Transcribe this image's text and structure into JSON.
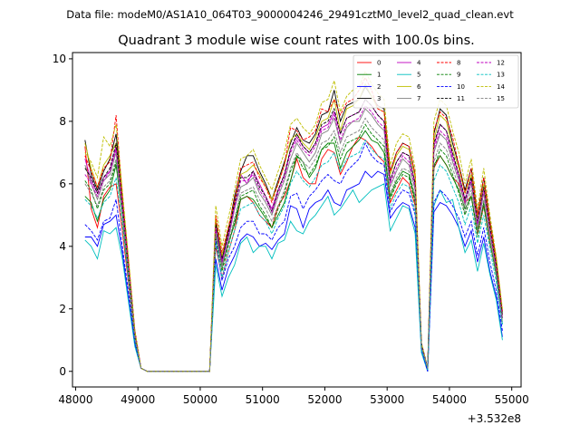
{
  "header": {
    "data_file": "Data file: modeM0/AS1A10_064T03_9000004246_29491cztM0_level2_quad_clean.evt"
  },
  "chart_data": {
    "type": "line",
    "title": "Quadrant 3 module wise count rates with 100.0s bins.",
    "xlabel": "",
    "ylabel": "",
    "offset_text": "+3.532e8",
    "xlim": [
      47950,
      55150
    ],
    "ylim": [
      -0.5,
      10.2
    ],
    "xticks": [
      48000,
      49000,
      50000,
      51000,
      52000,
      53000,
      54000,
      55000
    ],
    "xtick_labels": [
      "48000",
      "49000",
      "50000",
      "51000",
      "52000",
      "53000",
      "54000",
      "55000"
    ],
    "yticks": [
      0,
      2,
      4,
      6,
      8,
      10
    ],
    "ytick_labels": [
      "0",
      "2",
      "4",
      "6",
      "8",
      "10"
    ],
    "grid": false,
    "legend_position": "top-right",
    "x": [
      48150,
      48250,
      48350,
      48450,
      48550,
      48650,
      48750,
      48850,
      48950,
      49050,
      49150,
      50150,
      50250,
      50350,
      50450,
      50550,
      50650,
      50750,
      50850,
      50950,
      51050,
      51150,
      51250,
      51350,
      51450,
      51550,
      51650,
      51750,
      51850,
      51950,
      52050,
      52150,
      52250,
      52350,
      52450,
      52550,
      52650,
      52750,
      52850,
      52950,
      53050,
      53150,
      53250,
      53350,
      53450,
      53550,
      53650,
      53750,
      53850,
      53950,
      54050,
      54150,
      54250,
      54350,
      54450,
      54550,
      54650,
      54750,
      54850
    ],
    "series": [
      {
        "name": "0",
        "color": "#ff0000",
        "dash": "solid",
        "values": [
          7.2,
          5.2,
          4.6,
          5.6,
          5.9,
          6.0,
          4.5,
          2.8,
          1.0,
          0.1,
          0.0,
          0.0,
          4.0,
          3.0,
          3.8,
          4.5,
          5.5,
          5.6,
          5.4,
          5.0,
          4.8,
          4.6,
          5.3,
          5.6,
          6.1,
          6.8,
          6.2,
          6.0,
          6.0,
          6.8,
          7.1,
          7.0,
          6.3,
          6.7,
          7.2,
          7.5,
          7.4,
          7.2,
          6.9,
          6.7,
          5.4,
          5.8,
          6.2,
          6.0,
          5.3,
          0.8,
          0.1,
          6.5,
          6.9,
          6.6,
          6.2,
          6.0,
          5.4,
          5.6,
          4.4,
          5.3,
          4.1,
          3.2,
          1.7
        ]
      },
      {
        "name": "1",
        "color": "#008000",
        "dash": "solid",
        "values": [
          5.6,
          5.4,
          4.8,
          5.5,
          5.8,
          6.6,
          5.0,
          3.0,
          1.1,
          0.1,
          0.0,
          0.0,
          4.4,
          3.3,
          4.1,
          4.7,
          5.5,
          5.6,
          5.5,
          5.2,
          4.9,
          4.6,
          5.0,
          5.4,
          6.1,
          6.9,
          6.7,
          6.2,
          6.5,
          7.1,
          7.3,
          7.3,
          6.5,
          7.0,
          7.2,
          7.4,
          7.7,
          7.4,
          7.3,
          7.0,
          5.6,
          6.1,
          6.4,
          6.3,
          5.5,
          0.8,
          0.1,
          6.6,
          6.9,
          6.6,
          6.2,
          5.8,
          5.2,
          5.6,
          4.5,
          5.4,
          4.2,
          3.1,
          1.5
        ]
      },
      {
        "name": "2",
        "color": "#0000ff",
        "dash": "solid",
        "values": [
          4.3,
          4.3,
          4.0,
          4.7,
          4.8,
          5.0,
          3.8,
          2.3,
          0.9,
          0.1,
          0.0,
          0.0,
          3.6,
          2.6,
          3.3,
          3.7,
          4.2,
          4.4,
          4.3,
          4.0,
          4.1,
          3.9,
          4.2,
          4.4,
          5.3,
          5.2,
          4.6,
          5.2,
          5.4,
          5.5,
          5.8,
          5.4,
          5.3,
          5.8,
          5.9,
          6.0,
          6.4,
          6.2,
          6.4,
          6.3,
          4.9,
          5.2,
          5.4,
          5.3,
          4.6,
          0.7,
          0.0,
          5.1,
          5.4,
          5.3,
          5.0,
          4.6,
          4.0,
          4.5,
          3.5,
          4.3,
          3.2,
          2.4,
          1.1
        ]
      },
      {
        "name": "3",
        "color": "#000000",
        "dash": "solid",
        "values": [
          7.4,
          6.3,
          5.8,
          6.4,
          6.8,
          7.6,
          5.6,
          3.5,
          1.3,
          0.1,
          0.0,
          0.0,
          4.8,
          3.6,
          4.5,
          5.6,
          6.4,
          6.9,
          6.9,
          6.4,
          6.0,
          5.5,
          6.1,
          6.7,
          7.3,
          7.8,
          7.4,
          7.3,
          7.6,
          8.2,
          8.3,
          9.0,
          8.0,
          8.5,
          8.6,
          8.7,
          9.1,
          8.8,
          8.5,
          8.4,
          6.4,
          7.0,
          7.3,
          7.2,
          6.3,
          0.9,
          0.1,
          7.6,
          8.4,
          8.2,
          7.3,
          6.6,
          5.8,
          6.5,
          5.0,
          6.2,
          4.8,
          3.6,
          1.9
        ]
      },
      {
        "name": "4",
        "color": "#bf00bf",
        "dash": "solid",
        "values": [
          6.8,
          6.1,
          5.7,
          6.2,
          6.4,
          7.2,
          5.3,
          3.3,
          1.2,
          0.1,
          0.0,
          0.0,
          4.6,
          3.5,
          4.4,
          5.3,
          6.3,
          6.0,
          6.4,
          6.0,
          5.6,
          5.2,
          5.8,
          6.3,
          7.1,
          7.5,
          7.2,
          7.0,
          7.3,
          7.8,
          7.9,
          8.3,
          7.6,
          8.1,
          8.2,
          8.3,
          8.7,
          8.5,
          8.2,
          8.0,
          6.1,
          6.7,
          7.0,
          6.9,
          6.0,
          0.9,
          0.1,
          7.2,
          7.9,
          7.7,
          6.9,
          6.3,
          5.5,
          6.2,
          4.7,
          5.9,
          4.5,
          3.4,
          1.7
        ]
      },
      {
        "name": "5",
        "color": "#00bfbf",
        "dash": "solid",
        "values": [
          4.2,
          4.0,
          3.6,
          4.5,
          4.4,
          4.6,
          3.6,
          2.2,
          0.8,
          0.1,
          0.0,
          0.0,
          3.4,
          2.4,
          3.0,
          3.4,
          4.1,
          4.3,
          3.8,
          4.0,
          4.0,
          3.6,
          4.1,
          4.2,
          4.8,
          4.5,
          4.4,
          4.8,
          5.0,
          5.3,
          5.6,
          5.0,
          5.2,
          5.5,
          5.8,
          5.4,
          5.6,
          5.8,
          5.9,
          6.0,
          4.5,
          4.9,
          5.3,
          5.2,
          4.4,
          0.6,
          0.0,
          5.3,
          5.8,
          5.4,
          5.5,
          4.6,
          3.8,
          4.2,
          3.2,
          4.1,
          3.1,
          2.3,
          1.0
        ]
      },
      {
        "name": "6",
        "color": "#bfbf00",
        "dash": "solid",
        "values": [
          7.3,
          6.5,
          5.9,
          6.6,
          6.9,
          7.3,
          5.6,
          3.4,
          1.2,
          0.1,
          0.0,
          0.0,
          4.9,
          3.7,
          4.6,
          5.4,
          6.3,
          6.4,
          6.6,
          6.3,
          5.9,
          5.5,
          6.0,
          6.6,
          7.4,
          7.6,
          7.3,
          7.1,
          7.5,
          8.0,
          8.1,
          8.7,
          7.7,
          8.4,
          8.5,
          8.7,
          9.2,
          8.8,
          8.4,
          8.3,
          6.3,
          6.9,
          7.2,
          7.1,
          6.2,
          0.9,
          0.1,
          7.4,
          8.2,
          8.0,
          7.1,
          6.5,
          5.7,
          6.3,
          4.9,
          6.0,
          4.7,
          3.5,
          1.8
        ]
      },
      {
        "name": "7",
        "color": "#808080",
        "dash": "solid",
        "values": [
          6.6,
          6.0,
          5.5,
          6.1,
          6.3,
          7.0,
          5.2,
          3.2,
          1.2,
          0.1,
          0.0,
          0.0,
          4.5,
          3.4,
          4.2,
          5.2,
          5.9,
          6.0,
          6.2,
          5.7,
          5.4,
          5.0,
          5.6,
          6.1,
          6.8,
          7.3,
          7.0,
          6.7,
          7.0,
          7.6,
          7.7,
          8.1,
          7.3,
          7.8,
          8.0,
          8.0,
          8.4,
          8.2,
          7.9,
          7.7,
          5.9,
          6.4,
          6.8,
          6.6,
          5.8,
          0.8,
          0.1,
          7.0,
          7.6,
          7.4,
          6.7,
          6.1,
          5.3,
          6.0,
          4.6,
          5.7,
          4.4,
          3.3,
          1.7
        ]
      },
      {
        "name": "8",
        "color": "#ff0000",
        "dash": "dashed",
        "values": [
          6.9,
          6.4,
          5.9,
          6.5,
          6.7,
          8.2,
          5.6,
          3.5,
          1.3,
          0.1,
          0.0,
          0.0,
          5.0,
          3.8,
          4.6,
          5.5,
          6.5,
          6.6,
          6.7,
          6.2,
          5.9,
          5.4,
          6.0,
          6.6,
          7.8,
          7.7,
          7.4,
          7.5,
          7.7,
          8.4,
          8.3,
          8.7,
          8.2,
          8.6,
          8.7,
          9.0,
          9.4,
          9.0,
          8.4,
          8.3,
          6.4,
          7.0,
          7.3,
          7.2,
          6.3,
          0.9,
          0.1,
          7.7,
          8.3,
          8.1,
          7.5,
          6.6,
          5.7,
          6.5,
          5.0,
          6.2,
          4.8,
          3.6,
          1.9
        ]
      },
      {
        "name": "9",
        "color": "#008000",
        "dash": "dashed",
        "values": [
          6.1,
          5.8,
          5.2,
          5.8,
          6.0,
          6.7,
          5.0,
          3.1,
          1.1,
          0.1,
          0.0,
          0.0,
          4.3,
          3.2,
          4.0,
          4.8,
          5.6,
          5.7,
          5.8,
          5.3,
          5.0,
          4.6,
          5.2,
          5.7,
          6.4,
          6.9,
          6.5,
          6.3,
          6.6,
          7.1,
          7.2,
          7.5,
          6.8,
          7.3,
          7.4,
          7.5,
          7.9,
          7.6,
          7.4,
          7.2,
          5.5,
          6.0,
          6.3,
          6.2,
          5.4,
          0.8,
          0.1,
          6.5,
          7.1,
          6.9,
          6.3,
          5.7,
          5.0,
          5.6,
          4.3,
          5.3,
          4.1,
          3.1,
          1.6
        ]
      },
      {
        "name": "10",
        "color": "#0000ff",
        "dash": "dashed",
        "values": [
          4.7,
          4.5,
          4.2,
          4.8,
          4.9,
          5.5,
          4.0,
          2.5,
          0.9,
          0.1,
          0.0,
          0.0,
          4.2,
          2.9,
          3.6,
          4.0,
          4.6,
          4.8,
          4.8,
          4.4,
          4.4,
          4.2,
          4.6,
          4.8,
          5.6,
          5.7,
          5.2,
          5.6,
          5.8,
          6.1,
          6.3,
          6.1,
          6.0,
          6.4,
          6.6,
          6.8,
          7.3,
          6.9,
          6.7,
          6.6,
          5.1,
          5.5,
          5.8,
          5.7,
          5.0,
          0.7,
          0.0,
          5.4,
          5.8,
          5.6,
          5.3,
          4.9,
          4.3,
          4.8,
          3.7,
          4.6,
          3.5,
          2.6,
          1.3
        ]
      },
      {
        "name": "11",
        "color": "#000000",
        "dash": "dashed",
        "values": [
          6.5,
          6.2,
          5.7,
          6.2,
          6.5,
          7.3,
          5.4,
          3.3,
          1.2,
          0.1,
          0.0,
          0.0,
          4.7,
          3.5,
          4.4,
          5.4,
          6.2,
          6.2,
          6.4,
          5.9,
          5.6,
          5.1,
          5.8,
          6.3,
          7.1,
          7.6,
          7.2,
          7.0,
          7.3,
          7.9,
          8.0,
          8.4,
          7.6,
          8.1,
          8.2,
          8.3,
          8.7,
          8.5,
          8.2,
          8.0,
          6.1,
          6.7,
          7.0,
          6.9,
          6.0,
          0.9,
          0.1,
          7.3,
          7.9,
          7.7,
          7.0,
          6.3,
          5.5,
          6.2,
          4.8,
          5.9,
          4.6,
          3.4,
          1.8
        ]
      },
      {
        "name": "12",
        "color": "#bf00bf",
        "dash": "dashed",
        "values": [
          6.3,
          6.0,
          5.6,
          6.1,
          6.4,
          7.1,
          5.3,
          3.3,
          1.2,
          0.1,
          0.0,
          0.0,
          4.6,
          3.5,
          4.3,
          5.2,
          6.1,
          6.1,
          6.3,
          5.8,
          5.5,
          5.1,
          5.7,
          6.2,
          7.0,
          7.4,
          7.1,
          6.9,
          7.2,
          7.7,
          7.8,
          8.2,
          7.4,
          7.9,
          8.0,
          8.1,
          8.5,
          8.3,
          8.0,
          7.8,
          6.0,
          6.5,
          6.9,
          6.7,
          5.9,
          0.8,
          0.1,
          7.1,
          7.7,
          7.5,
          6.8,
          6.2,
          5.4,
          6.1,
          4.7,
          5.8,
          4.5,
          3.3,
          1.7
        ]
      },
      {
        "name": "13",
        "color": "#00bfbf",
        "dash": "dashed",
        "values": [
          5.5,
          5.3,
          4.9,
          5.4,
          5.6,
          6.2,
          4.7,
          2.9,
          1.0,
          0.1,
          0.0,
          0.0,
          4.1,
          3.0,
          3.8,
          4.5,
          5.2,
          5.3,
          5.4,
          5.0,
          4.8,
          4.4,
          4.9,
          5.3,
          6.0,
          6.4,
          6.1,
          5.9,
          6.2,
          6.6,
          6.7,
          7.0,
          6.4,
          6.8,
          6.9,
          7.0,
          7.4,
          7.1,
          6.9,
          6.8,
          5.2,
          5.7,
          6.0,
          5.9,
          5.1,
          0.7,
          0.1,
          6.1,
          6.6,
          6.4,
          5.9,
          5.4,
          4.7,
          5.3,
          4.1,
          5.0,
          3.9,
          2.9,
          1.5
        ]
      },
      {
        "name": "14",
        "color": "#bfbf00",
        "dash": "dashed",
        "values": [
          7.0,
          6.7,
          6.2,
          7.5,
          7.2,
          7.9,
          5.8,
          3.6,
          1.3,
          0.1,
          0.0,
          0.0,
          5.3,
          4.0,
          4.9,
          5.8,
          6.8,
          6.9,
          7.1,
          6.6,
          6.2,
          5.8,
          6.4,
          7.0,
          7.9,
          8.1,
          7.8,
          7.6,
          7.9,
          8.6,
          8.7,
          9.3,
          8.3,
          8.8,
          9.0,
          9.1,
          9.6,
          9.2,
          8.9,
          8.7,
          6.6,
          7.3,
          7.6,
          7.5,
          6.5,
          0.9,
          0.1,
          8.0,
          8.7,
          8.5,
          7.7,
          7.0,
          6.0,
          6.8,
          5.2,
          6.5,
          5.0,
          3.7,
          2.0
        ]
      },
      {
        "name": "15",
        "color": "#808080",
        "dash": "dashed",
        "values": [
          6.0,
          5.7,
          5.3,
          5.9,
          6.1,
          6.8,
          5.0,
          3.1,
          1.1,
          0.1,
          0.0,
          0.0,
          4.4,
          3.3,
          4.1,
          4.9,
          5.7,
          5.8,
          5.9,
          5.5,
          5.2,
          4.8,
          5.3,
          5.8,
          6.5,
          7.0,
          6.7,
          6.5,
          6.8,
          7.3,
          7.4,
          7.7,
          7.0,
          7.5,
          7.6,
          7.7,
          8.1,
          7.8,
          7.6,
          7.4,
          5.7,
          6.2,
          6.5,
          6.4,
          5.6,
          0.8,
          0.1,
          6.7,
          7.3,
          7.1,
          6.5,
          5.9,
          5.1,
          5.8,
          4.4,
          5.5,
          4.2,
          3.2,
          1.6
        ]
      }
    ]
  }
}
